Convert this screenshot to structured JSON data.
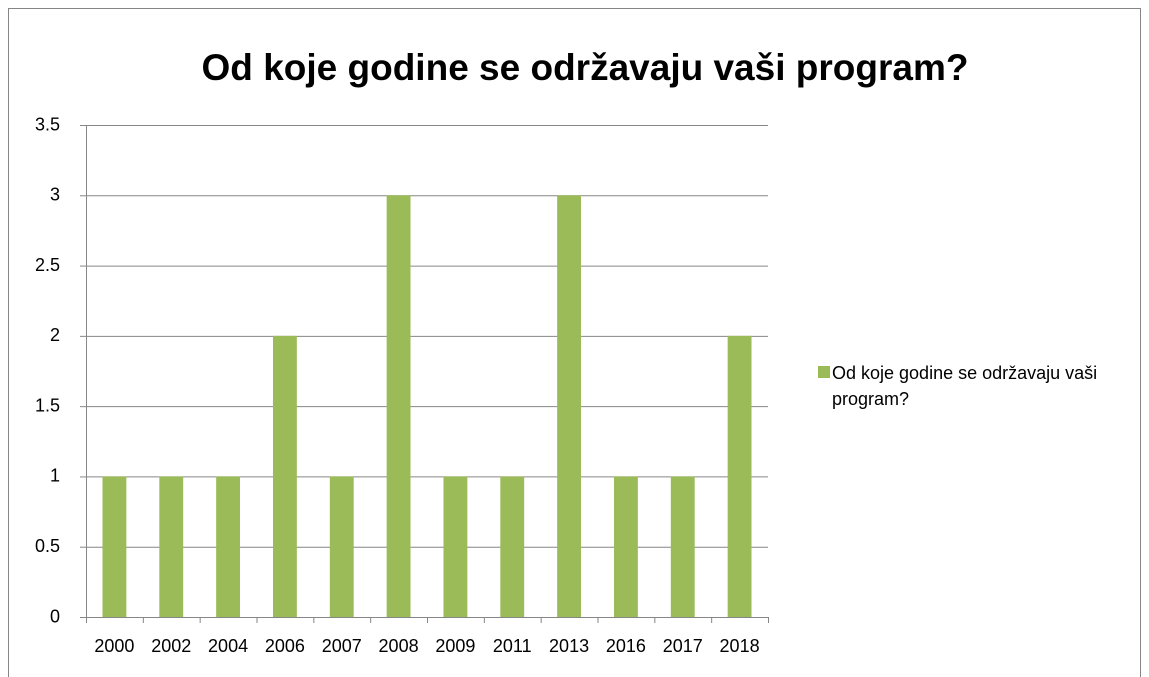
{
  "chart_data": {
    "type": "bar",
    "title": "Od koje godine se održavaju vaši program?",
    "categories": [
      "2000",
      "2002",
      "2004",
      "2006",
      "2007",
      "2008",
      "2009",
      "2011",
      "2013",
      "2016",
      "2017",
      "2018"
    ],
    "series": [
      {
        "name": "Od koje godine se održavaju vaši program?",
        "color": "#9bbb59",
        "values": [
          1,
          1,
          1,
          2,
          1,
          3,
          1,
          1,
          3,
          1,
          1,
          2
        ]
      }
    ],
    "ylim": [
      0,
      3.5
    ],
    "yticks": [
      0,
      0.5,
      1,
      1.5,
      2,
      2.5,
      3,
      3.5
    ],
    "grid": true,
    "legend": "right"
  }
}
